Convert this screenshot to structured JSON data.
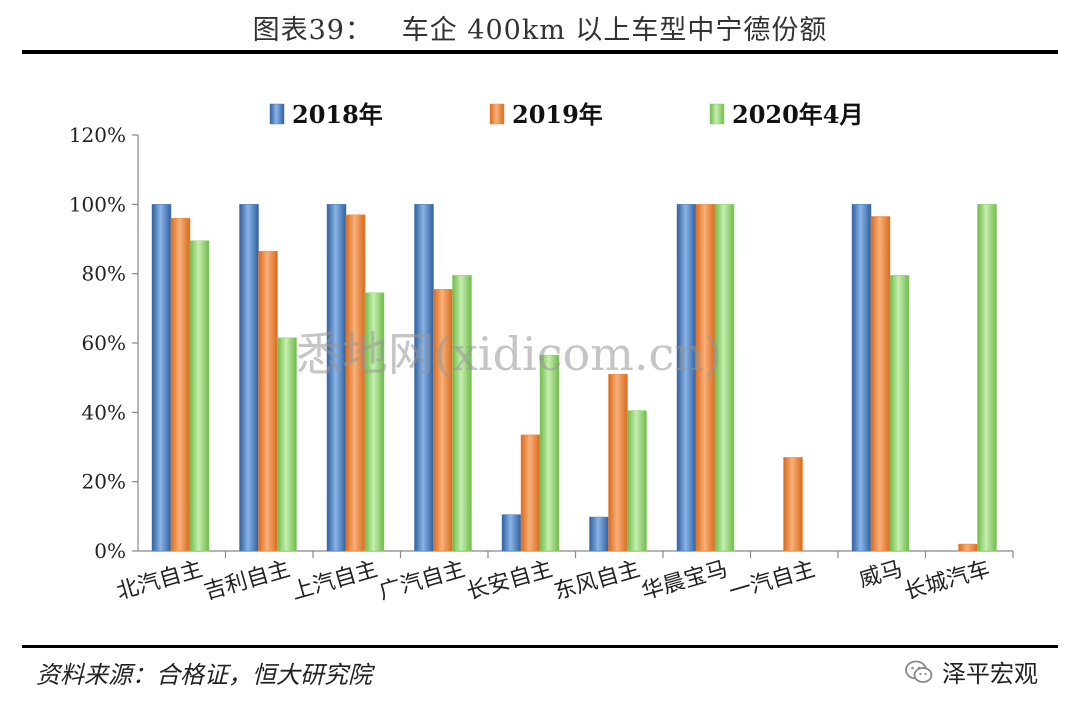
{
  "header": {
    "title": "图表39：   车企 400km 以上车型中宁德份额"
  },
  "footer": {
    "source": "资料来源：合格证，恒大研究院",
    "brand": "泽平宏观"
  },
  "watermark": "悉地网(xidicom.cn)",
  "colors": {
    "series_2018": "#4a7ebf",
    "series_2019": "#f08c3c",
    "series_2020": "#8ed16a"
  },
  "chart_data": {
    "type": "bar",
    "title": "",
    "xlabel": "",
    "ylabel": "",
    "ylim": [
      0,
      120
    ],
    "yticks": [
      "0%",
      "20%",
      "40%",
      "60%",
      "80%",
      "100%",
      "120%"
    ],
    "grid": false,
    "legend_position": "top",
    "categories": [
      "北汽自主",
      "吉利自主",
      "上汽自主",
      "广汽自主",
      "长安自主",
      "东风自主",
      "华晨宝马",
      "一汽自主",
      "威马",
      "长城汽车"
    ],
    "series": [
      {
        "name": "2018年",
        "values": [
          100,
          100,
          100,
          100,
          10.5,
          9.8,
          100,
          null,
          100,
          null
        ]
      },
      {
        "name": "2019年",
        "values": [
          96,
          86.5,
          97,
          75.5,
          33.5,
          51,
          100,
          27,
          96.5,
          2
        ]
      },
      {
        "name": "2020年4月",
        "values": [
          89.5,
          61.5,
          74.5,
          79.5,
          56.5,
          40.5,
          100,
          null,
          79.5,
          100
        ]
      }
    ]
  }
}
